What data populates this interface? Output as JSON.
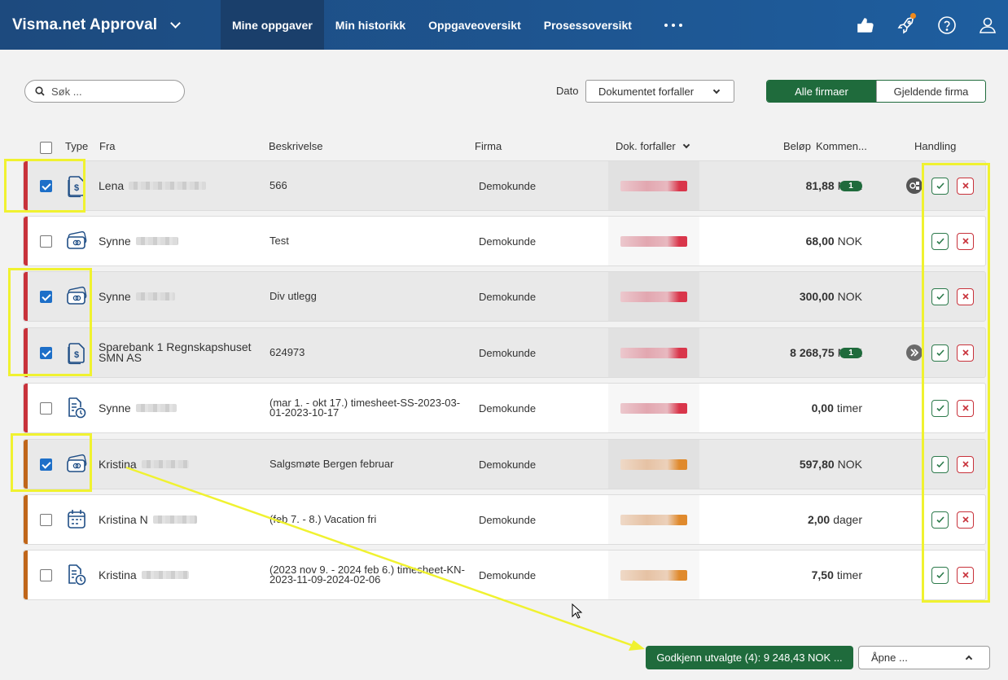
{
  "app": {
    "title": "Visma.net Approval"
  },
  "nav": {
    "items": [
      "Mine oppgaver",
      "Min historikk",
      "Oppgaveoversikt",
      "Prosessoversikt"
    ],
    "more_icon": "more-horizontal-icon"
  },
  "top_icons": [
    "thumbs-up-icon",
    "rocket-icon",
    "help-icon",
    "user-icon"
  ],
  "toolbar": {
    "search_placeholder": "Søk ...",
    "date_label": "Dato",
    "date_value": "Dokumentet forfaller",
    "filter_all": "Alle firmaer",
    "filter_current": "Gjeldende firma"
  },
  "table": {
    "headers": {
      "type": "Type",
      "from": "Fra",
      "description": "Beskrivelse",
      "company": "Firma",
      "due": "Dok. forfaller",
      "amount": "Beløp",
      "comments": "Kommen...",
      "action": "Handling"
    },
    "rows": [
      {
        "selected": true,
        "type_icon": "invoice-icon",
        "from": "Lena",
        "description": "566",
        "company": "Demokunde",
        "amount": "81,88",
        "unit": "NOK",
        "comments": "1",
        "extra_icon": "workflow-icon",
        "stripe": "#c8323b"
      },
      {
        "selected": false,
        "type_icon": "expense-card-icon",
        "from": "Synne",
        "description": "Test",
        "company": "Demokunde",
        "amount": "68,00",
        "unit": "NOK",
        "comments": "",
        "extra_icon": "",
        "stripe": "#c8323b"
      },
      {
        "selected": true,
        "type_icon": "expense-card-icon",
        "from": "Synne",
        "description": "Div utlegg",
        "company": "Demokunde",
        "amount": "300,00",
        "unit": "NOK",
        "comments": "",
        "extra_icon": "",
        "stripe": "#c8323b"
      },
      {
        "selected": true,
        "type_icon": "invoice-icon",
        "from": "Sparebank 1 Regnskapshuset SMN AS",
        "description": "624973",
        "company": "Demokunde",
        "amount": "8 268,75",
        "unit": "NOK",
        "comments": "1",
        "extra_icon": "forward-icon",
        "stripe": "#c8323b"
      },
      {
        "selected": false,
        "type_icon": "timesheet-icon",
        "from": "Synne",
        "description": "(mar 1. - okt 17.) timesheet-SS-2023-03-01-2023-10-17",
        "company": "Demokunde",
        "amount": "0,00",
        "unit": "timer",
        "comments": "",
        "extra_icon": "",
        "stripe": "#c8323b"
      },
      {
        "selected": true,
        "type_icon": "expense-card-icon",
        "from": "Kristina",
        "description": "Salgsmøte Bergen februar",
        "company": "Demokunde",
        "amount": "597,80",
        "unit": "NOK",
        "comments": "",
        "extra_icon": "",
        "stripe": "#c0661a"
      },
      {
        "selected": false,
        "type_icon": "calendar-icon",
        "from": "Kristina N",
        "description": "(feb 7. - 8.) Vacation fri",
        "company": "Demokunde",
        "amount": "2,00",
        "unit": "dager",
        "comments": "",
        "extra_icon": "",
        "stripe": "#c0661a"
      },
      {
        "selected": false,
        "type_icon": "timesheet-icon",
        "from": "Kristina",
        "description": "(2023 nov 9. - 2024 feb 6.) timesheet-KN-2023-11-09-2024-02-06",
        "company": "Demokunde",
        "amount": "7,50",
        "unit": "timer",
        "comments": "",
        "extra_icon": "",
        "stripe": "#c0661a"
      }
    ]
  },
  "footer": {
    "approve_label": "Godkjenn utvalgte (4): 9 248,43 NOK ...",
    "open_label": "Åpne ..."
  },
  "colors": {
    "nav_bg": "#1e5596",
    "accent_green": "#1f6b3c",
    "reject_red": "#c8323b",
    "checkbox_blue": "#1d6fc8",
    "annotation_yellow": "#f0f230"
  }
}
